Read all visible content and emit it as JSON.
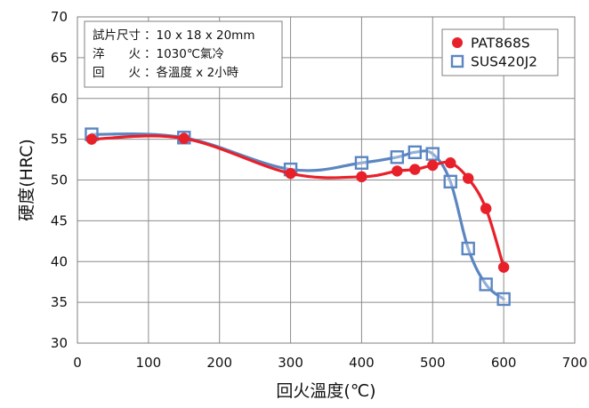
{
  "chart_data": {
    "type": "line",
    "xlabel": "回火溫度(℃)",
    "ylabel": "硬度(HRC)",
    "xlim": [
      0,
      700
    ],
    "ylim": [
      30,
      70
    ],
    "xticks": [
      0,
      100,
      200,
      300,
      400,
      500,
      600,
      700
    ],
    "yticks": [
      30,
      35,
      40,
      45,
      50,
      55,
      60,
      65,
      70
    ],
    "grid": true,
    "legend_position": "top-right",
    "notes": [
      {
        "label": "試片尺寸",
        "value": "：10 x 18 x 20mm"
      },
      {
        "label": "淬　　火",
        "value": "：1030℃氣冷"
      },
      {
        "label": "回　　火",
        "value": "：各溫度 x 2小時"
      }
    ],
    "series": [
      {
        "name": "PAT868S",
        "color": "#e8202a",
        "marker": "circle",
        "x": [
          20,
          150,
          300,
          400,
          450,
          475,
          500,
          525,
          550,
          575,
          600
        ],
        "y": [
          55.0,
          55.1,
          50.8,
          50.4,
          51.1,
          51.3,
          51.8,
          52.1,
          50.2,
          46.5,
          39.3
        ]
      },
      {
        "name": "SUS420J2",
        "color": "#5b86c2",
        "marker": "square",
        "x": [
          20,
          150,
          300,
          400,
          450,
          475,
          500,
          525,
          550,
          575,
          600
        ],
        "y": [
          55.6,
          55.2,
          51.3,
          52.1,
          52.8,
          53.4,
          53.2,
          49.8,
          41.6,
          37.2,
          35.4
        ]
      }
    ]
  }
}
